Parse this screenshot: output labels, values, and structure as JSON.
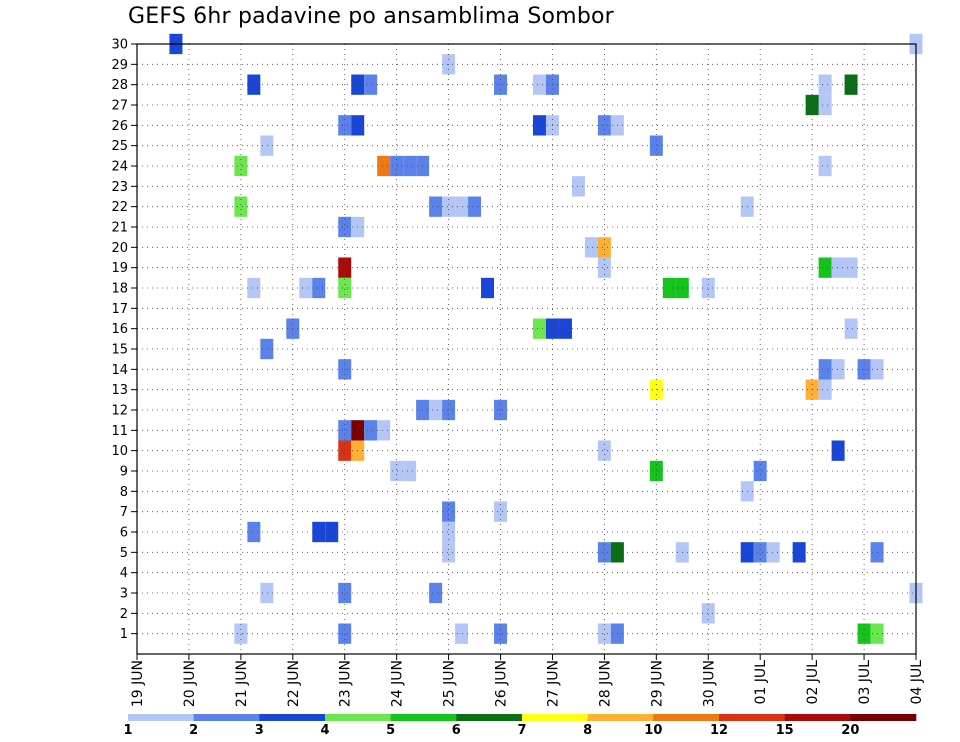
{
  "chart_data": {
    "type": "heatmap",
    "title": "GEFS 6hr padavine po ansamblima Sombor",
    "x_axis": {
      "ticks": [
        "19 JUN",
        "20 JUN",
        "21 JUN",
        "22 JUN",
        "23 JUN",
        "24 JUN",
        "25 JUN",
        "26 JUN",
        "27 JUN",
        "28 JUN",
        "29 JUN",
        "30 JUN",
        "01 JUL",
        "02 JUL",
        "03 JUL",
        "04 JUL"
      ],
      "steps_per_day": 4,
      "range_steps": [
        0,
        60
      ]
    },
    "y_axis": {
      "ticks": [
        "1",
        "2",
        "3",
        "4",
        "5",
        "6",
        "7",
        "8",
        "9",
        "10",
        "11",
        "12",
        "13",
        "14",
        "15",
        "16",
        "17",
        "18",
        "19",
        "20",
        "21",
        "22",
        "23",
        "24",
        "25",
        "26",
        "27",
        "28",
        "29",
        "30"
      ],
      "range": [
        0,
        30
      ]
    },
    "grid": true,
    "colorbar": {
      "position": "bottom",
      "labels": [
        "1",
        "2",
        "3",
        "4",
        "5",
        "6",
        "7",
        "8",
        "10",
        "12",
        "15",
        "20"
      ],
      "colors": [
        "#b4c6f5",
        "#5a82ea",
        "#1a46d8",
        "#6ae64e",
        "#14c31c",
        "#0a6e14",
        "#ffff14",
        "#ffb032",
        "#f07814",
        "#dc3214",
        "#aa0a0a",
        "#780000"
      ]
    },
    "cells": [
      [
        3,
        30,
        3
      ],
      [
        60,
        30,
        1
      ],
      [
        24,
        29,
        1
      ],
      [
        9,
        28,
        3
      ],
      [
        17,
        28,
        3
      ],
      [
        18,
        28,
        2
      ],
      [
        28,
        28,
        2
      ],
      [
        31,
        28,
        1
      ],
      [
        32,
        28,
        2
      ],
      [
        53,
        28,
        1
      ],
      [
        55,
        28,
        6
      ],
      [
        53,
        27,
        1
      ],
      [
        52,
        27,
        6
      ],
      [
        16,
        26,
        2
      ],
      [
        17,
        26,
        3
      ],
      [
        31,
        26,
        3
      ],
      [
        32,
        26,
        1
      ],
      [
        36,
        26,
        2
      ],
      [
        37,
        26,
        1
      ],
      [
        10,
        25,
        1
      ],
      [
        40,
        25,
        2
      ],
      [
        8,
        24,
        4
      ],
      [
        19,
        24,
        9
      ],
      [
        20,
        24,
        2
      ],
      [
        21,
        24,
        2
      ],
      [
        22,
        24,
        2
      ],
      [
        53,
        24,
        1
      ],
      [
        34,
        23,
        1
      ],
      [
        8,
        22,
        4
      ],
      [
        23,
        22,
        2
      ],
      [
        24,
        22,
        1
      ],
      [
        25,
        22,
        1
      ],
      [
        26,
        22,
        2
      ],
      [
        47,
        22,
        1
      ],
      [
        16,
        21,
        2
      ],
      [
        17,
        21,
        1
      ],
      [
        35,
        20,
        1
      ],
      [
        36,
        20,
        8
      ],
      [
        16,
        19,
        11
      ],
      [
        36,
        19,
        1
      ],
      [
        53,
        19,
        5
      ],
      [
        54,
        19,
        1
      ],
      [
        55,
        19,
        1
      ],
      [
        9,
        18,
        1
      ],
      [
        13,
        18,
        1
      ],
      [
        14,
        18,
        2
      ],
      [
        16,
        18,
        4
      ],
      [
        27,
        18,
        3
      ],
      [
        41,
        18,
        5
      ],
      [
        42,
        18,
        5
      ],
      [
        44,
        18,
        1
      ],
      [
        12,
        16,
        2
      ],
      [
        31,
        16,
        4
      ],
      [
        32,
        16,
        3
      ],
      [
        33,
        16,
        3
      ],
      [
        55,
        16,
        1
      ],
      [
        10,
        15,
        2
      ],
      [
        16,
        14,
        2
      ],
      [
        53,
        14,
        2
      ],
      [
        54,
        14,
        1
      ],
      [
        56,
        14,
        2
      ],
      [
        57,
        14,
        1
      ],
      [
        40,
        13,
        7
      ],
      [
        52,
        13,
        8
      ],
      [
        53,
        13,
        1
      ],
      [
        22,
        12,
        2
      ],
      [
        23,
        12,
        1
      ],
      [
        24,
        12,
        2
      ],
      [
        28,
        12,
        2
      ],
      [
        16,
        11,
        2
      ],
      [
        17,
        11,
        12
      ],
      [
        18,
        11,
        2
      ],
      [
        19,
        11,
        1
      ],
      [
        16,
        10,
        10
      ],
      [
        17,
        10,
        8
      ],
      [
        36,
        10,
        1
      ],
      [
        54,
        10,
        3
      ],
      [
        20,
        9,
        1
      ],
      [
        21,
        9,
        1
      ],
      [
        40,
        9,
        5
      ],
      [
        48,
        9,
        2
      ],
      [
        47,
        8,
        1
      ],
      [
        24,
        7,
        2
      ],
      [
        28,
        7,
        1
      ],
      [
        9,
        6,
        2
      ],
      [
        14,
        6,
        3
      ],
      [
        15,
        6,
        3
      ],
      [
        24,
        6,
        1
      ],
      [
        24,
        5,
        1
      ],
      [
        36,
        5,
        2
      ],
      [
        37,
        5,
        6
      ],
      [
        42,
        5,
        1
      ],
      [
        47,
        5,
        3
      ],
      [
        48,
        5,
        2
      ],
      [
        49,
        5,
        1
      ],
      [
        51,
        5,
        3
      ],
      [
        57,
        5,
        2
      ],
      [
        10,
        3,
        1
      ],
      [
        16,
        3,
        2
      ],
      [
        23,
        3,
        2
      ],
      [
        60,
        3,
        1
      ],
      [
        44,
        2,
        1
      ],
      [
        8,
        1,
        1
      ],
      [
        16,
        1,
        2
      ],
      [
        25,
        1,
        1
      ],
      [
        28,
        1,
        2
      ],
      [
        36,
        1,
        1
      ],
      [
        37,
        1,
        2
      ],
      [
        56,
        1,
        5
      ],
      [
        57,
        1,
        4
      ]
    ]
  }
}
